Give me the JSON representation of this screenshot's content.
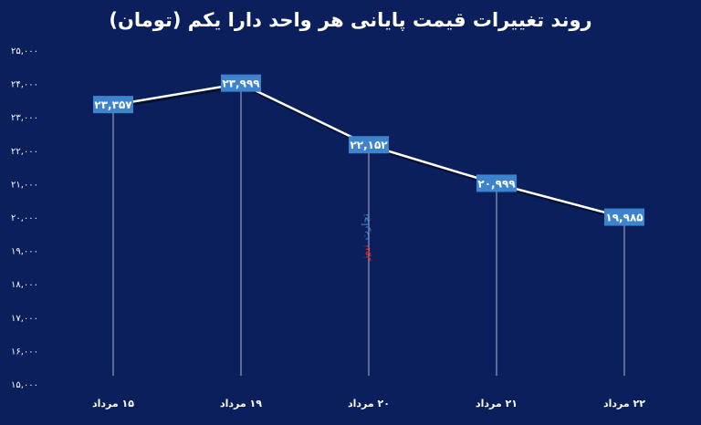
{
  "chart_data": {
    "type": "line",
    "title": "روند تغییرات قیمت پایانی هر واحد دارا یکم (تومان)",
    "xlabel": "",
    "ylabel": "",
    "categories": [
      "۱۵ مرداد",
      "۱۹ مرداد",
      "۲۰ مرداد",
      "۲۱ مرداد",
      "۲۲ مرداد"
    ],
    "series": [
      {
        "values": [
          23357,
          23999,
          22152,
          20999,
          19985
        ],
        "labels": [
          "۲۳,۳۵۷",
          "۲۳,۹۹۹",
          "۲۲,۱۵۲",
          "۲۰,۹۹۹",
          "۱۹,۹۸۵"
        ]
      }
    ],
    "ylim": [
      15000,
      25000
    ],
    "yticks": [
      15000,
      16000,
      17000,
      18000,
      19000,
      20000,
      21000,
      22000,
      23000,
      24000,
      25000
    ],
    "ytick_labels": [
      "۱۵,۰۰۰",
      "۱۶,۰۰۰",
      "۱۷,۰۰۰",
      "۱۸,۰۰۰",
      "۱۹,۰۰۰",
      "۲۰,۰۰۰",
      "۲۱,۰۰۰",
      "۲۲,۰۰۰",
      "۲۳,۰۰۰",
      "۲۴,۰۰۰",
      "۲۵,۰۰۰"
    ],
    "grid": false,
    "legend": "none",
    "colors": {
      "background": "#0b1f5c",
      "line": "#ffffff",
      "label_box": "#3d84cf",
      "drop_line": "#ffffff"
    }
  },
  "watermark": {
    "part1": "تجارت",
    "part2": "نیوز",
    "color1": "#3c87d6",
    "color2": "#e2232a"
  }
}
